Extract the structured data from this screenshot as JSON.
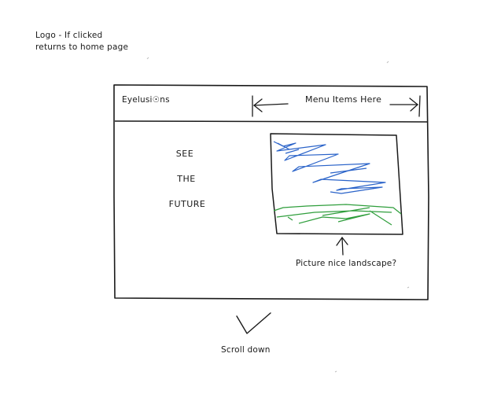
{
  "notes": {
    "logo_line1": "Logo - If clicked",
    "logo_line2": "returns to home page",
    "picture": "Picture nice landscape?",
    "scroll": "Scroll down"
  },
  "header": {
    "brand": "Eyelusi☉ns",
    "menu": "Menu Items Here"
  },
  "hero": {
    "lines": [
      "SEE",
      "THE",
      "FUTURE"
    ]
  },
  "colors": {
    "ink": "#1a1a1a",
    "sky_scribble": "#2a63c9",
    "grass_scribble": "#2f9e3c"
  }
}
